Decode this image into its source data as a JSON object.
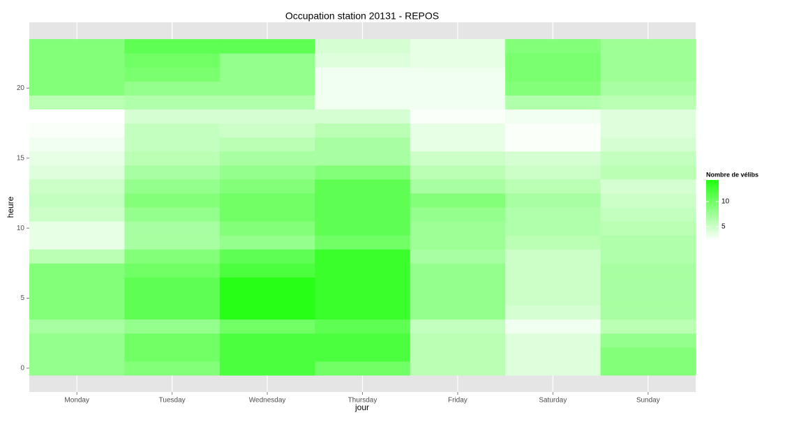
{
  "chart_data": {
    "type": "heatmap",
    "title": "Occupation station 20131 - REPOS",
    "x_label": "jour",
    "y_label": "heure",
    "categories": [
      "Monday",
      "Tuesday",
      "Wednesday",
      "Thursday",
      "Friday",
      "Saturday",
      "Sunday"
    ],
    "y": [
      0,
      1,
      2,
      3,
      4,
      5,
      6,
      7,
      8,
      9,
      10,
      11,
      12,
      13,
      14,
      15,
      16,
      17,
      18,
      19,
      20,
      21,
      22,
      23
    ],
    "values": [
      [
        8,
        8,
        8,
        7,
        9,
        9,
        9,
        9,
        6,
        3.5,
        3.5,
        5,
        5.5,
        5,
        4,
        3.5,
        3,
        2.5,
        2.2,
        6,
        9,
        9,
        9,
        9
      ],
      [
        9,
        10,
        10,
        8,
        11,
        11,
        11,
        10,
        9,
        7,
        7,
        8,
        9,
        8,
        7,
        6,
        5.5,
        5.5,
        4.5,
        6.5,
        8,
        9.5,
        10,
        11
      ],
      [
        12,
        12,
        12,
        10,
        14,
        14,
        14,
        12,
        11,
        8,
        9,
        10,
        10,
        9,
        8,
        7,
        6,
        5,
        4.5,
        6.5,
        8,
        8,
        8,
        11
      ],
      [
        10,
        12,
        12,
        11,
        13,
        13,
        13,
        13,
        13,
        10,
        11,
        11,
        11,
        11,
        9,
        7,
        7,
        6,
        4.5,
        3,
        3,
        3,
        4,
        4.5
      ],
      [
        6,
        6,
        6,
        5.5,
        8,
        8,
        8,
        8,
        7,
        7.5,
        7.5,
        8,
        9,
        7,
        6,
        5,
        3.5,
        3.5,
        2.5,
        3,
        3,
        3,
        3.5,
        3.5
      ],
      [
        4,
        4,
        4,
        3,
        4.5,
        5,
        5,
        5,
        5,
        6,
        6.5,
        6.5,
        7,
        6,
        5,
        4.5,
        2.5,
        2.5,
        3,
        6.5,
        9,
        9.5,
        9.5,
        9
      ],
      [
        9,
        9,
        8,
        6,
        7,
        7,
        7,
        7,
        6.5,
        6.5,
        6,
        5.5,
        5,
        4.5,
        6,
        5.5,
        4.5,
        4,
        4,
        6,
        7,
        7.5,
        7.5,
        7.5
      ]
    ],
    "ylim": [
      -1.7,
      24.7
    ],
    "yticks": [
      0,
      5,
      10,
      15,
      20
    ],
    "grid": true,
    "legend_title": "Nombre de vélibs",
    "clim": [
      2.2,
      14.3
    ],
    "cticks": [
      5,
      10
    ],
    "color_low": "#ffffff",
    "color_high": "#22ff11"
  }
}
